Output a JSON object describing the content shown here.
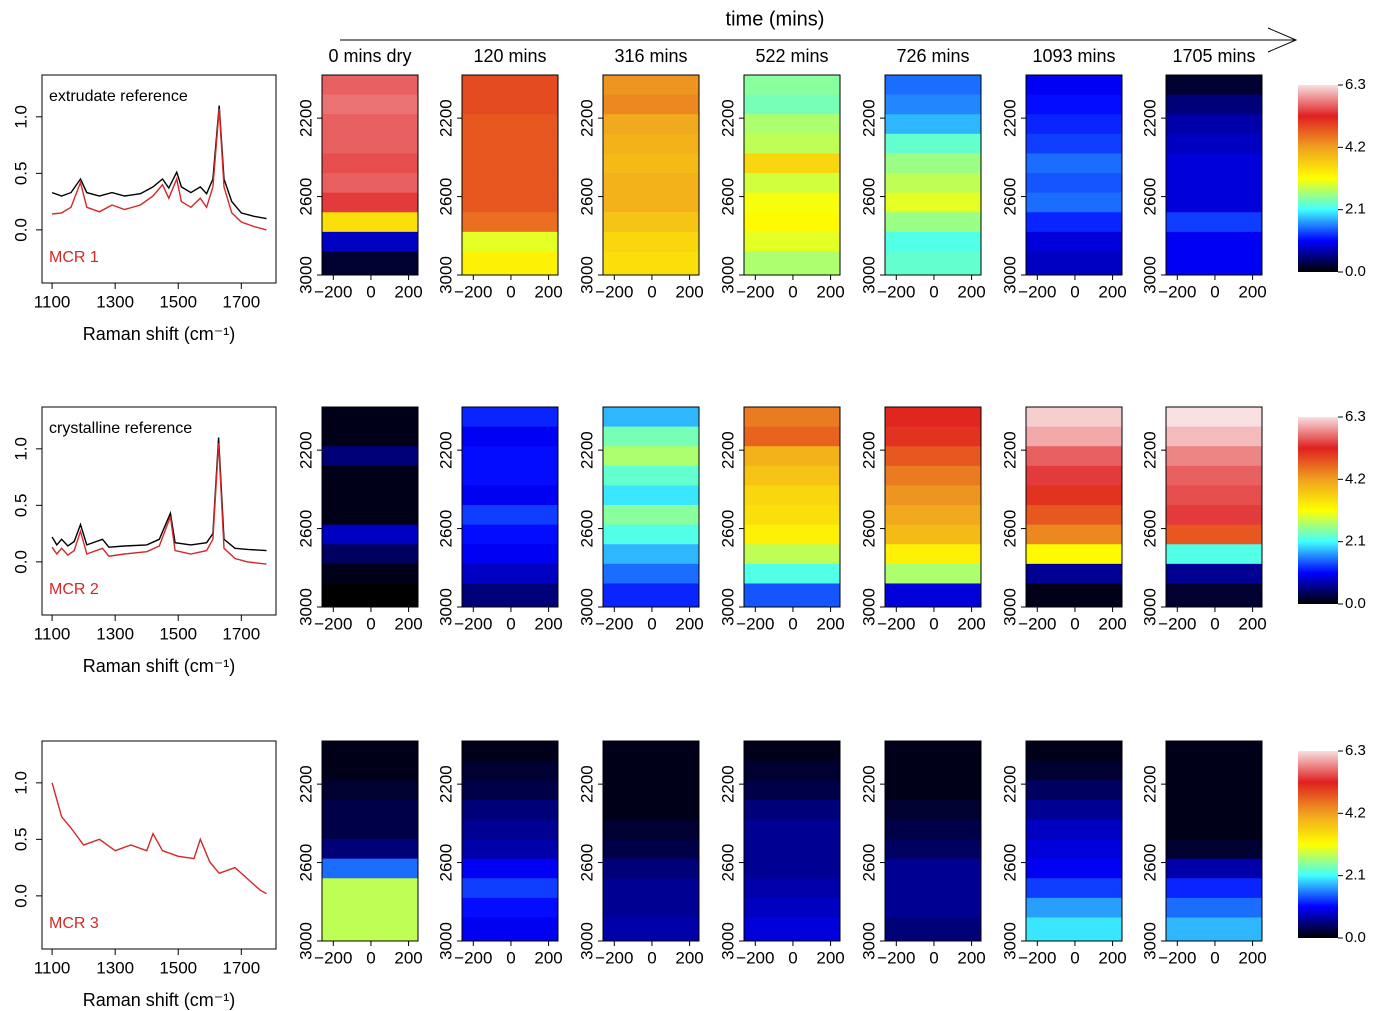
{
  "title": "time (mins)",
  "chart_data": [
    {
      "type": "line",
      "x": [
        1100,
        1130,
        1160,
        1190,
        1210,
        1250,
        1290,
        1330,
        1380,
        1420,
        1450,
        1470,
        1495,
        1510,
        1540,
        1570,
        1590,
        1610,
        1630,
        1645,
        1670,
        1700,
        1740,
        1780
      ],
      "series": [
        {
          "name": "extrudate reference",
          "color": "#000000",
          "values": [
            0.33,
            0.3,
            0.33,
            0.45,
            0.33,
            0.3,
            0.33,
            0.3,
            0.32,
            0.38,
            0.45,
            0.37,
            0.51,
            0.38,
            0.33,
            0.38,
            0.32,
            0.45,
            1.1,
            0.45,
            0.25,
            0.15,
            0.12,
            0.1
          ]
        },
        {
          "name": "MCR 1",
          "color": "#d62728",
          "values": [
            0.14,
            0.15,
            0.2,
            0.42,
            0.2,
            0.16,
            0.22,
            0.18,
            0.22,
            0.3,
            0.4,
            0.28,
            0.45,
            0.25,
            0.2,
            0.28,
            0.2,
            0.38,
            1.07,
            0.38,
            0.15,
            0.07,
            0.03,
            0.0
          ]
        }
      ],
      "xlim": [
        1068,
        1810
      ],
      "ylim": [
        -0.47,
        1.37
      ],
      "xticks": [
        1100,
        1300,
        1500,
        1700
      ],
      "yticks": [
        {
          "value": 0,
          "label": "0.0"
        },
        0.5,
        {
          "value": 1,
          "label": "1.0"
        }
      ],
      "xlabel": "Raman shift (cm⁻¹)"
    },
    {
      "type": "heatmap",
      "title": "0 mins dry",
      "y": [
        2030,
        2130,
        2230,
        2330,
        2430,
        2530,
        2630,
        2730,
        2830,
        2930
      ],
      "values": [
        5.6,
        5.7,
        5.6,
        5.6,
        5.5,
        5.6,
        5.4,
        3.5,
        0.8,
        0.2
      ],
      "xlim": [
        -260,
        250
      ],
      "ylim": [
        3000,
        1980
      ],
      "xticks": [
        {
          "value": -200,
          "label": "−200"
        },
        0,
        200
      ],
      "yticks": [
        2200,
        2600,
        3000
      ]
    },
    {
      "type": "heatmap",
      "title": "120 mins",
      "y": [
        2030,
        2130,
        2230,
        2330,
        2430,
        2530,
        2630,
        2730,
        2830,
        2930
      ],
      "values": [
        4.9,
        4.9,
        4.8,
        4.8,
        4.8,
        4.8,
        4.8,
        4.6,
        3.0,
        3.3
      ],
      "xlim": [
        -260,
        250
      ],
      "ylim": [
        3000,
        1980
      ],
      "xticks": [
        {
          "value": -200,
          "label": "−200"
        },
        0,
        200
      ],
      "yticks": [
        2200,
        2600,
        3000
      ]
    },
    {
      "type": "heatmap",
      "title": "316 mins",
      "y": [
        2030,
        2130,
        2230,
        2330,
        2430,
        2530,
        2630,
        2730,
        2830,
        2930
      ],
      "values": [
        4.3,
        4.4,
        4.1,
        4.0,
        3.9,
        4.0,
        4.0,
        3.8,
        3.6,
        3.5
      ],
      "xlim": [
        -260,
        250
      ],
      "ylim": [
        3000,
        1980
      ],
      "xticks": [
        {
          "value": -200,
          "label": "−200"
        },
        0,
        200
      ],
      "yticks": [
        2200,
        2600,
        3000
      ]
    },
    {
      "type": "heatmap",
      "title": "522 mins",
      "y": [
        2030,
        2130,
        2230,
        2330,
        2430,
        2530,
        2630,
        2730,
        2830,
        2930
      ],
      "values": [
        2.5,
        2.4,
        2.7,
        2.8,
        3.6,
        2.9,
        3.1,
        3.2,
        3.0,
        2.7
      ],
      "xlim": [
        -260,
        250
      ],
      "ylim": [
        3000,
        1980
      ],
      "xticks": [
        {
          "value": -200,
          "label": "−200"
        },
        0,
        200
      ],
      "yticks": [
        2200,
        2600,
        3000
      ]
    },
    {
      "type": "heatmap",
      "title": "726 mins",
      "y": [
        2030,
        2130,
        2230,
        2330,
        2430,
        2530,
        2630,
        2730,
        2830,
        2930
      ],
      "values": [
        1.5,
        1.6,
        1.8,
        2.3,
        2.6,
        2.8,
        3.0,
        2.6,
        2.2,
        2.3
      ],
      "xlim": [
        -260,
        250
      ],
      "ylim": [
        3000,
        1980
      ],
      "xticks": [
        {
          "value": -200,
          "label": "−200"
        },
        0,
        200
      ],
      "yticks": [
        2200,
        2600,
        3000
      ]
    },
    {
      "type": "heatmap",
      "title": "1093 mins",
      "y": [
        2030,
        2130,
        2230,
        2330,
        2430,
        2530,
        2630,
        2730,
        2830,
        2930
      ],
      "values": [
        1.0,
        1.1,
        1.2,
        1.3,
        1.5,
        1.4,
        1.5,
        1.2,
        0.9,
        0.8
      ],
      "xlim": [
        -260,
        250
      ],
      "ylim": [
        3000,
        1980
      ],
      "xticks": [
        {
          "value": -200,
          "label": "−200"
        },
        0,
        200
      ],
      "yticks": [
        2200,
        2600,
        3000
      ]
    },
    {
      "type": "heatmap",
      "title": "1705 mins",
      "y": [
        2030,
        2130,
        2230,
        2330,
        2430,
        2530,
        2630,
        2730,
        2830,
        2930
      ],
      "values": [
        0.2,
        0.5,
        0.7,
        0.8,
        0.9,
        0.9,
        0.9,
        1.3,
        1.0,
        1.0
      ],
      "xlim": [
        -260,
        250
      ],
      "ylim": [
        3000,
        1980
      ],
      "xticks": [
        {
          "value": -200,
          "label": "−200"
        },
        0,
        200
      ],
      "yticks": [
        2200,
        2600,
        3000
      ]
    },
    {
      "type": "colorbar",
      "zlim": [
        0,
        6.3
      ],
      "ticks": [
        {
          "value": 0,
          "label": "0.0"
        },
        2.1,
        4.2,
        6.3
      ],
      "colors": [
        "#000000",
        "#0000ff",
        "#40ffff",
        "#ffff00",
        "#f0a020",
        "#e02020",
        "#f8e0e0"
      ]
    },
    {
      "type": "line",
      "x": [
        1100,
        1115,
        1130,
        1150,
        1170,
        1190,
        1210,
        1260,
        1280,
        1330,
        1400,
        1440,
        1475,
        1490,
        1540,
        1590,
        1610,
        1628,
        1645,
        1680,
        1720,
        1780
      ],
      "series": [
        {
          "name": "crystalline reference",
          "color": "#000000",
          "values": [
            0.22,
            0.15,
            0.2,
            0.14,
            0.18,
            0.33,
            0.15,
            0.2,
            0.13,
            0.14,
            0.15,
            0.2,
            0.43,
            0.17,
            0.15,
            0.17,
            0.25,
            1.1,
            0.2,
            0.12,
            0.11,
            0.1
          ]
        },
        {
          "name": "MCR 2",
          "color": "#d62728",
          "values": [
            0.13,
            0.07,
            0.12,
            0.06,
            0.1,
            0.27,
            0.07,
            0.12,
            0.05,
            0.07,
            0.09,
            0.14,
            0.4,
            0.1,
            0.07,
            0.1,
            0.2,
            1.05,
            0.12,
            0.03,
            0.0,
            -0.02
          ]
        }
      ],
      "xlim": [
        1068,
        1810
      ],
      "ylim": [
        -0.47,
        1.37
      ],
      "xticks": [
        1100,
        1300,
        1500,
        1700
      ],
      "yticks": [
        {
          "value": 0,
          "label": "0.0"
        },
        0.5,
        {
          "value": 1,
          "label": "1.0"
        }
      ],
      "xlabel": "Raman shift (cm⁻¹)"
    },
    {
      "type": "heatmap",
      "y": [
        2030,
        2130,
        2230,
        2330,
        2430,
        2530,
        2630,
        2730,
        2830,
        2930
      ],
      "values": [
        0.1,
        0.1,
        0.5,
        0.1,
        0.1,
        0.1,
        0.8,
        0.4,
        0.1,
        0.0
      ],
      "xlim": [
        -260,
        250
      ],
      "ylim": [
        3000,
        1980
      ],
      "xticks": [
        {
          "value": -200,
          "label": "−200"
        },
        0,
        200
      ],
      "yticks": [
        2200,
        2600,
        3000
      ]
    },
    {
      "type": "heatmap",
      "y": [
        2030,
        2130,
        2230,
        2330,
        2430,
        2530,
        2630,
        2730,
        2830,
        2930
      ],
      "values": [
        1.2,
        1.0,
        1.1,
        1.1,
        1.0,
        1.3,
        1.1,
        1.0,
        0.8,
        0.5
      ],
      "xlim": [
        -260,
        250
      ],
      "ylim": [
        3000,
        1980
      ],
      "xticks": [
        {
          "value": -200,
          "label": "−200"
        },
        0,
        200
      ],
      "yticks": [
        2200,
        2600,
        3000
      ]
    },
    {
      "type": "heatmap",
      "y": [
        2030,
        2130,
        2230,
        2330,
        2430,
        2530,
        2630,
        2730,
        2830,
        2930
      ],
      "values": [
        1.8,
        2.4,
        2.7,
        2.3,
        2.0,
        2.5,
        2.2,
        1.8,
        1.5,
        1.2
      ],
      "xlim": [
        -260,
        250
      ],
      "ylim": [
        3000,
        1980
      ],
      "xticks": [
        {
          "value": -200,
          "label": "−200"
        },
        0,
        200
      ],
      "yticks": [
        2200,
        2600,
        3000
      ]
    },
    {
      "type": "heatmap",
      "y": [
        2030,
        2130,
        2230,
        2330,
        2430,
        2530,
        2630,
        2730,
        2830,
        2930
      ],
      "values": [
        4.5,
        4.7,
        4.0,
        3.8,
        3.6,
        3.5,
        3.3,
        2.8,
        2.2,
        1.4
      ],
      "xlim": [
        -260,
        250
      ],
      "ylim": [
        3000,
        1980
      ],
      "xticks": [
        {
          "value": -200,
          "label": "−200"
        },
        0,
        200
      ],
      "yticks": [
        2200,
        2600,
        3000
      ]
    },
    {
      "type": "heatmap",
      "y": [
        2030,
        2130,
        2230,
        2330,
        2430,
        2530,
        2630,
        2730,
        2830,
        2930
      ],
      "values": [
        5.2,
        5.1,
        4.8,
        4.5,
        4.3,
        4.1,
        3.9,
        3.3,
        2.7,
        0.9
      ],
      "xlim": [
        -260,
        250
      ],
      "ylim": [
        3000,
        1980
      ],
      "xticks": [
        {
          "value": -200,
          "label": "−200"
        },
        0,
        200
      ],
      "yticks": [
        2200,
        2600,
        3000
      ]
    },
    {
      "type": "heatmap",
      "y": [
        2030,
        2130,
        2230,
        2330,
        2430,
        2530,
        2630,
        2730,
        2830,
        2930
      ],
      "values": [
        6.2,
        6.0,
        5.6,
        5.4,
        5.1,
        4.8,
        4.4,
        3.2,
        0.6,
        0.1
      ],
      "xlim": [
        -260,
        250
      ],
      "ylim": [
        3000,
        1980
      ],
      "xticks": [
        {
          "value": -200,
          "label": "−200"
        },
        0,
        200
      ],
      "yticks": [
        2200,
        2600,
        3000
      ]
    },
    {
      "type": "heatmap",
      "y": [
        2030,
        2130,
        2230,
        2330,
        2430,
        2530,
        2630,
        2730,
        2830,
        2930
      ],
      "values": [
        6.3,
        6.1,
        5.8,
        5.6,
        5.5,
        5.4,
        4.8,
        2.2,
        0.6,
        0.2
      ],
      "xlim": [
        -260,
        250
      ],
      "ylim": [
        3000,
        1980
      ],
      "xticks": [
        {
          "value": -200,
          "label": "−200"
        },
        0,
        200
      ],
      "yticks": [
        2200,
        2600,
        3000
      ]
    },
    {
      "type": "colorbar",
      "zlim": [
        0,
        6.3
      ],
      "ticks": [
        {
          "value": 0,
          "label": "0.0"
        },
        2.1,
        4.2,
        6.3
      ],
      "colors": [
        "#000000",
        "#0000ff",
        "#40ffff",
        "#ffff00",
        "#f0a020",
        "#e02020",
        "#f8e0e0"
      ]
    },
    {
      "type": "line",
      "x": [
        1100,
        1130,
        1160,
        1200,
        1250,
        1300,
        1350,
        1400,
        1420,
        1450,
        1500,
        1550,
        1570,
        1600,
        1630,
        1680,
        1720,
        1760,
        1780
      ],
      "series": [
        {
          "name": "MCR 3",
          "color": "#d62728",
          "values": [
            1.0,
            0.7,
            0.6,
            0.45,
            0.5,
            0.4,
            0.45,
            0.4,
            0.55,
            0.4,
            0.35,
            0.33,
            0.5,
            0.3,
            0.2,
            0.25,
            0.15,
            0.05,
            0.02
          ]
        }
      ],
      "xlim": [
        1068,
        1810
      ],
      "ylim": [
        -0.47,
        1.37
      ],
      "xticks": [
        1100,
        1300,
        1500,
        1700
      ],
      "yticks": [
        {
          "value": 0,
          "label": "0.0"
        },
        0.5,
        {
          "value": 1,
          "label": "1.0"
        }
      ],
      "xlabel": "Raman shift (cm⁻¹)"
    },
    {
      "type": "heatmap",
      "y": [
        2030,
        2130,
        2230,
        2330,
        2430,
        2530,
        2630,
        2730,
        2830,
        2930
      ],
      "values": [
        0.1,
        0.1,
        0.2,
        0.3,
        0.3,
        0.5,
        1.5,
        2.8,
        2.8,
        2.8
      ],
      "xlim": [
        -260,
        250
      ],
      "ylim": [
        3000,
        1980
      ],
      "xticks": [
        {
          "value": -200,
          "label": "−200"
        },
        0,
        200
      ],
      "yticks": [
        2200,
        2600,
        3000
      ]
    },
    {
      "type": "heatmap",
      "y": [
        2030,
        2130,
        2230,
        2330,
        2430,
        2530,
        2630,
        2730,
        2830,
        2930
      ],
      "values": [
        0.1,
        0.2,
        0.3,
        0.5,
        0.6,
        0.7,
        1.0,
        1.3,
        1.1,
        1.0
      ],
      "xlim": [
        -260,
        250
      ],
      "ylim": [
        3000,
        1980
      ],
      "xticks": [
        {
          "value": -200,
          "label": "−200"
        },
        0,
        200
      ],
      "yticks": [
        2200,
        2600,
        3000
      ]
    },
    {
      "type": "heatmap",
      "y": [
        2030,
        2130,
        2230,
        2330,
        2430,
        2530,
        2630,
        2730,
        2830,
        2930
      ],
      "values": [
        0.1,
        0.1,
        0.1,
        0.1,
        0.2,
        0.3,
        0.5,
        0.6,
        0.6,
        0.7
      ],
      "xlim": [
        -260,
        250
      ],
      "ylim": [
        3000,
        1980
      ],
      "xticks": [
        {
          "value": -200,
          "label": "−200"
        },
        0,
        200
      ],
      "yticks": [
        2200,
        2600,
        3000
      ]
    },
    {
      "type": "heatmap",
      "y": [
        2030,
        2130,
        2230,
        2330,
        2430,
        2530,
        2630,
        2730,
        2830,
        2930
      ],
      "values": [
        0.1,
        0.2,
        0.3,
        0.5,
        0.6,
        0.6,
        0.6,
        0.7,
        0.8,
        0.9
      ],
      "xlim": [
        -260,
        250
      ],
      "ylim": [
        3000,
        1980
      ],
      "xticks": [
        {
          "value": -200,
          "label": "−200"
        },
        0,
        200
      ],
      "yticks": [
        2200,
        2600,
        3000
      ]
    },
    {
      "type": "heatmap",
      "y": [
        2030,
        2130,
        2230,
        2330,
        2430,
        2530,
        2630,
        2730,
        2830,
        2930
      ],
      "values": [
        0.1,
        0.1,
        0.1,
        0.2,
        0.3,
        0.4,
        0.6,
        0.6,
        0.6,
        0.5
      ],
      "xlim": [
        -260,
        250
      ],
      "ylim": [
        3000,
        1980
      ],
      "xticks": [
        {
          "value": -200,
          "label": "−200"
        },
        0,
        200
      ],
      "yticks": [
        2200,
        2600,
        3000
      ]
    },
    {
      "type": "heatmap",
      "y": [
        2030,
        2130,
        2230,
        2330,
        2430,
        2530,
        2630,
        2730,
        2830,
        2930
      ],
      "values": [
        0.1,
        0.2,
        0.4,
        0.6,
        0.8,
        0.9,
        1.0,
        1.3,
        1.7,
        2.0
      ],
      "xlim": [
        -260,
        250
      ],
      "ylim": [
        3000,
        1980
      ],
      "xticks": [
        {
          "value": -200,
          "label": "−200"
        },
        0,
        200
      ],
      "yticks": [
        2200,
        2600,
        3000
      ]
    },
    {
      "type": "heatmap",
      "y": [
        2030,
        2130,
        2230,
        2330,
        2430,
        2530,
        2630,
        2730,
        2830,
        2930
      ],
      "values": [
        0.1,
        0.1,
        0.1,
        0.1,
        0.1,
        0.2,
        0.7,
        1.2,
        1.5,
        1.8
      ],
      "xlim": [
        -260,
        250
      ],
      "ylim": [
        3000,
        1980
      ],
      "xticks": [
        {
          "value": -200,
          "label": "−200"
        },
        0,
        200
      ],
      "yticks": [
        2200,
        2600,
        3000
      ]
    },
    {
      "type": "colorbar",
      "zlim": [
        0,
        6.3
      ],
      "ticks": [
        {
          "value": 0,
          "label": "0.0"
        },
        2.1,
        4.2,
        6.3
      ],
      "colors": [
        "#000000",
        "#0000ff",
        "#40ffff",
        "#ffff00",
        "#f0a020",
        "#e02020",
        "#f8e0e0"
      ]
    }
  ]
}
